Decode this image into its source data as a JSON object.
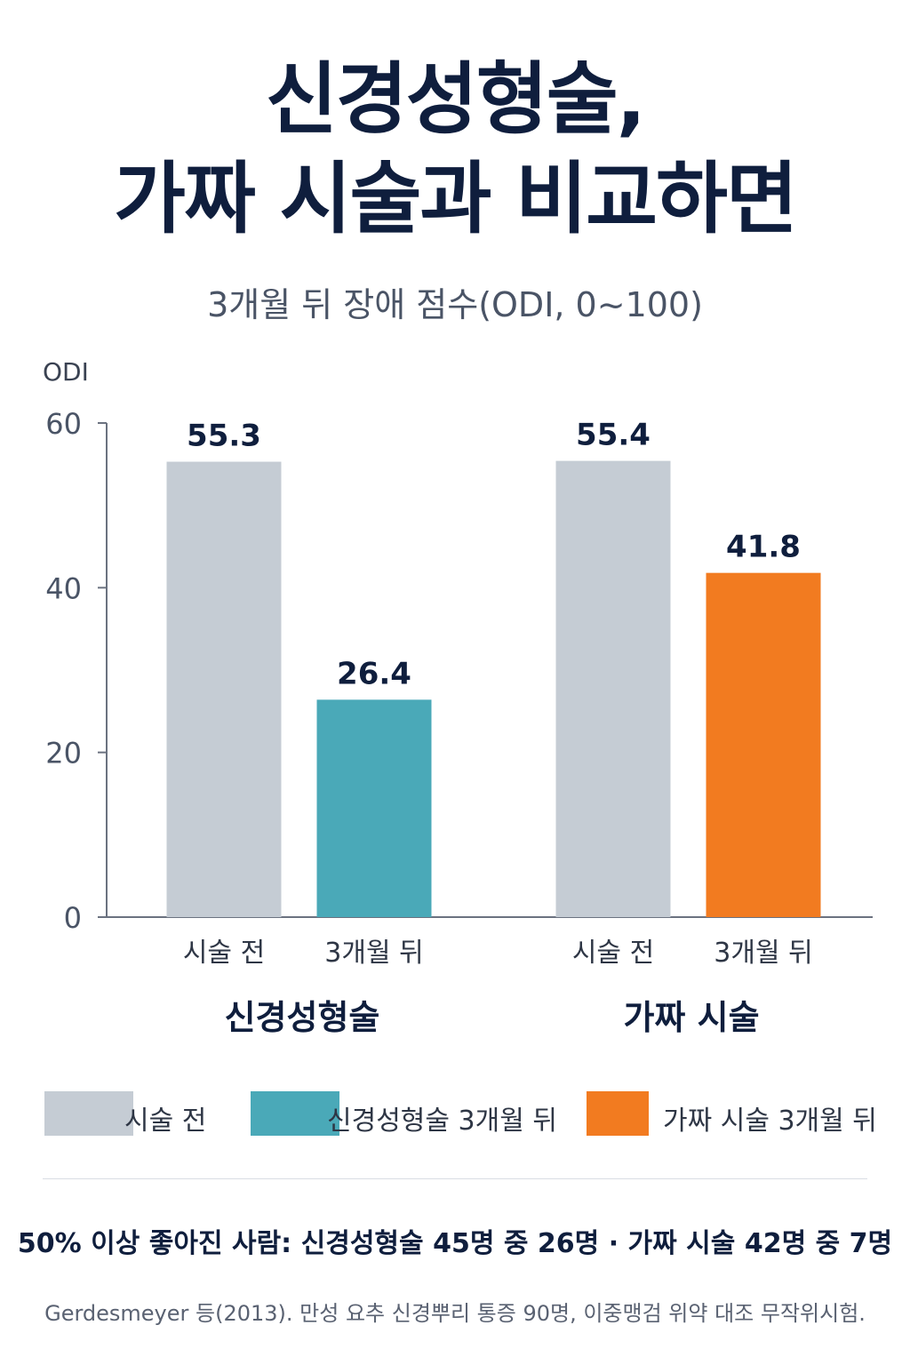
{
  "title": {
    "line1": "신경성형술,",
    "line2": "가짜 시술과 비교하면"
  },
  "subtitle": "3개월 뒤 장애 점수(ODI, 0~100)",
  "colors": {
    "before": "#c5ccd4",
    "neuroplasty_after": "#4aa9b8",
    "sham_after": "#f27b20",
    "axis": "#6b7280"
  },
  "chart_data": {
    "type": "bar",
    "ylabel": "ODI",
    "ylim": [
      0,
      60
    ],
    "yticks": [
      0,
      20,
      40,
      60
    ],
    "groups": [
      {
        "name": "신경성형술",
        "bars": [
          {
            "label": "시술 전",
            "value": 55.3,
            "value_label": "55.3",
            "series": "before"
          },
          {
            "label": "3개월 뒤",
            "value": 26.4,
            "value_label": "26.4",
            "series": "neuroplasty_after"
          }
        ]
      },
      {
        "name": "가짜 시술",
        "bars": [
          {
            "label": "시술 전",
            "value": 55.4,
            "value_label": "55.4",
            "series": "before"
          },
          {
            "label": "3개월 뒤",
            "value": 41.8,
            "value_label": "41.8",
            "series": "sham_after"
          }
        ]
      }
    ],
    "legend": [
      {
        "name": "시술 전",
        "series": "before"
      },
      {
        "name": "신경성형술 3개월 뒤",
        "series": "neuroplasty_after"
      },
      {
        "name": "가짜 시술 3개월 뒤",
        "series": "sham_after"
      }
    ],
    "legend_position": "bottom",
    "grid": false
  },
  "summary": "50% 이상 좋아진 사람: 신경성형술 45명 중 26명 · 가짜 시술 42명 중 7명",
  "source": "Gerdesmeyer 등(2013). 만성 요추 신경뿌리 통증 90명, 이중맹검 위약 대조 무작위시험."
}
